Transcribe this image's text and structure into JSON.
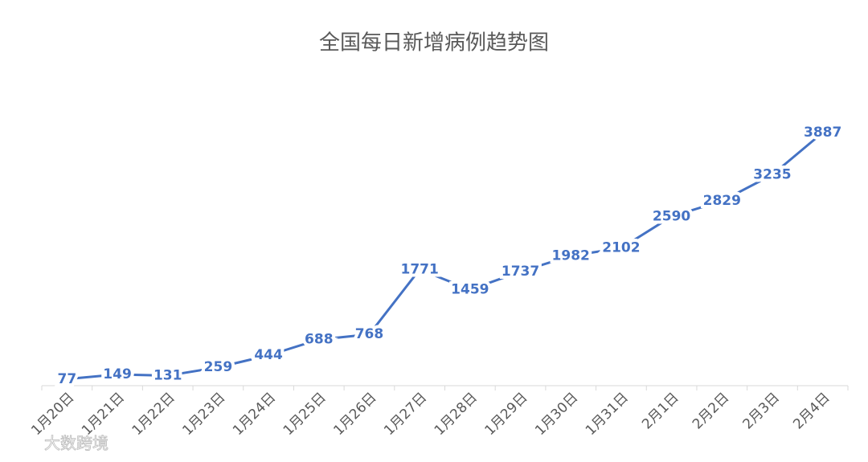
{
  "chart_data": {
    "type": "line",
    "title": "全国每日新增病例趋势图",
    "categories": [
      "1月20日",
      "1月21日",
      "1月22日",
      "1月23日",
      "1月24日",
      "1月25日",
      "1月26日",
      "1月27日",
      "1月28日",
      "1月29日",
      "1月30日",
      "1月31日",
      "2月1日",
      "2月2日",
      "2月3日",
      "2月4日"
    ],
    "values": [
      77,
      149,
      131,
      259,
      444,
      688,
      768,
      1771,
      1459,
      1737,
      1982,
      2102,
      2590,
      2829,
      3235,
      3887
    ],
    "color": "#4472c4"
  },
  "watermark": "大数跨境"
}
